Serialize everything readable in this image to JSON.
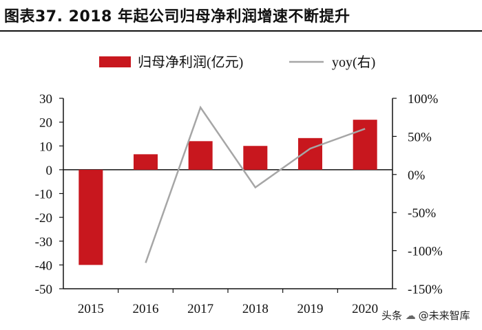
{
  "figure_title": "图表37. 2018 年起公司归母净利润增速不断提升",
  "watermark": {
    "prefix": "头条",
    "handle": "@未来智库",
    "icon": "wechat-icon"
  },
  "colors": {
    "bar": "#c8171e",
    "line": "#a6a6a6",
    "axis": "#111111",
    "text": "#111111"
  },
  "chart_data": {
    "type": "bar",
    "categories": [
      "2015",
      "2016",
      "2017",
      "2018",
      "2019",
      "2020"
    ],
    "series": [
      {
        "name": "归母净利润(亿元)",
        "type": "bar",
        "axis": "left",
        "values": [
          -40,
          6.5,
          12,
          10,
          13.3,
          21
        ]
      },
      {
        "name": "yoy(右)",
        "type": "line",
        "axis": "right",
        "values": [
          null,
          -116,
          88,
          -17,
          34,
          60
        ]
      }
    ],
    "y_left": {
      "min": -50,
      "max": 30,
      "step": 10,
      "ticks": [
        "30",
        "20",
        "10",
        "0",
        "-10",
        "-20",
        "-30",
        "-40",
        "-50"
      ]
    },
    "y_right": {
      "min": -150,
      "max": 100,
      "step": 50,
      "ticks": [
        "100%",
        "50%",
        "0%",
        "-50%",
        "-100%",
        "-150%"
      ]
    },
    "legend": {
      "position": "top-center",
      "entries": [
        {
          "label": "归母净利润(亿元)",
          "kind": "bar"
        },
        {
          "label": "yoy(右)",
          "kind": "line"
        }
      ]
    },
    "title": "",
    "xlabel": "",
    "ylabel": "",
    "grid": false
  }
}
